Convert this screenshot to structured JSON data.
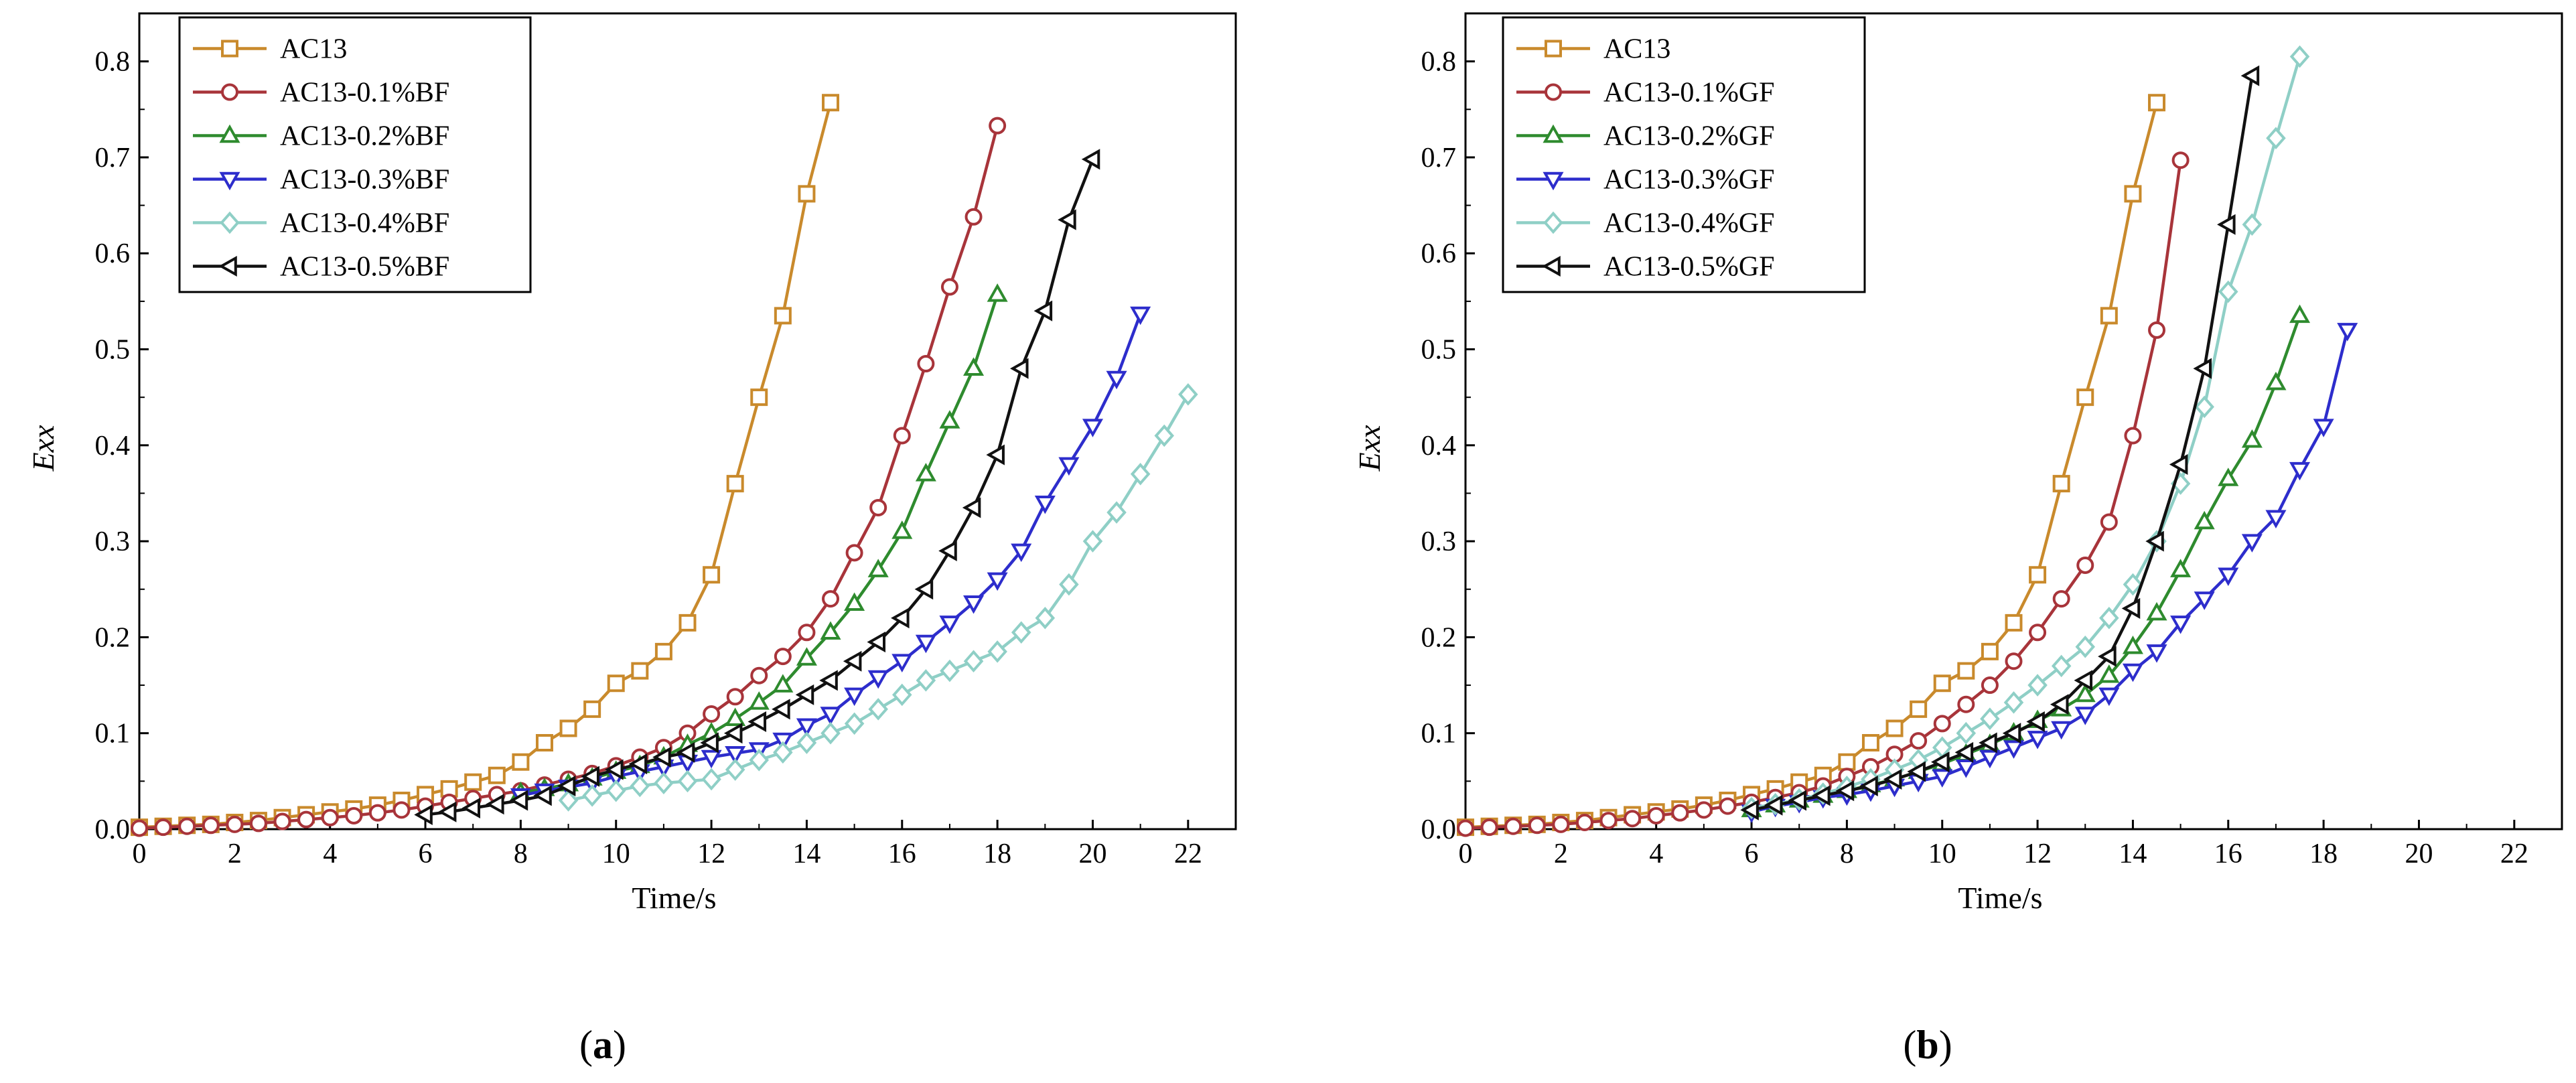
{
  "chart_data": [
    {
      "type": "line",
      "panel_label": "a",
      "xlabel": "Time/s",
      "ylabel": "Exx",
      "xlim": [
        0,
        23
      ],
      "ylim": [
        0,
        0.85
      ],
      "xticks": [
        "0",
        "2",
        "4",
        "6",
        "8",
        "10",
        "12",
        "14",
        "16",
        "18",
        "20",
        "22"
      ],
      "yticks": [
        "0.0",
        "0.1",
        "0.2",
        "0.3",
        "0.4",
        "0.5",
        "0.6",
        "0.7",
        "0.8"
      ],
      "legend_position": "top-left",
      "series": [
        {
          "name": "AC13",
          "color": "#c98a2c",
          "marker": "square",
          "x": [
            0,
            0.5,
            1,
            1.5,
            2,
            2.5,
            3,
            3.5,
            4,
            4.5,
            5,
            5.5,
            6,
            6.5,
            7,
            7.5,
            8,
            8.5,
            9,
            9.5,
            10,
            10.5,
            11,
            11.5,
            12,
            12.5,
            13,
            13.5,
            14,
            14.5
          ],
          "y": [
            0.002,
            0.003,
            0.004,
            0.005,
            0.007,
            0.009,
            0.012,
            0.015,
            0.018,
            0.021,
            0.025,
            0.03,
            0.036,
            0.042,
            0.049,
            0.056,
            0.07,
            0.09,
            0.105,
            0.125,
            0.152,
            0.165,
            0.185,
            0.215,
            0.265,
            0.36,
            0.45,
            0.535,
            0.662,
            0.757
          ]
        },
        {
          "name": "AC13-0.1%BF",
          "color": "#a8343a",
          "marker": "circle",
          "x": [
            0,
            0.5,
            1,
            1.5,
            2,
            2.5,
            3,
            3.5,
            4,
            4.5,
            5,
            5.5,
            6,
            6.5,
            7,
            7.5,
            8,
            8.5,
            9,
            9.5,
            10,
            10.5,
            11,
            11.5,
            12,
            12.5,
            13,
            13.5,
            14,
            14.5,
            15,
            15.5,
            16,
            16.5,
            17,
            17.5,
            18
          ],
          "y": [
            0.001,
            0.002,
            0.003,
            0.004,
            0.005,
            0.006,
            0.008,
            0.01,
            0.012,
            0.014,
            0.017,
            0.02,
            0.024,
            0.028,
            0.032,
            0.036,
            0.04,
            0.046,
            0.052,
            0.058,
            0.066,
            0.075,
            0.085,
            0.1,
            0.12,
            0.138,
            0.16,
            0.18,
            0.205,
            0.24,
            0.288,
            0.335,
            0.41,
            0.485,
            0.565,
            0.638,
            0.733
          ]
        },
        {
          "name": "AC13-0.2%BF",
          "color": "#2e8b2e",
          "marker": "triangle-up",
          "x": [
            8,
            8.5,
            9,
            9.5,
            10,
            10.5,
            11,
            11.5,
            12,
            12.5,
            13,
            13.5,
            14,
            14.5,
            15,
            15.5,
            16,
            16.5,
            17,
            17.5,
            18
          ],
          "y": [
            0.038,
            0.042,
            0.047,
            0.053,
            0.06,
            0.066,
            0.075,
            0.088,
            0.1,
            0.115,
            0.132,
            0.15,
            0.178,
            0.205,
            0.235,
            0.27,
            0.31,
            0.37,
            0.425,
            0.48,
            0.557
          ]
        },
        {
          "name": "AC13-0.3%BF",
          "color": "#2d2dcc",
          "marker": "triangle-down",
          "x": [
            8,
            8.5,
            9,
            9.5,
            10,
            10.5,
            11,
            11.5,
            12,
            12.5,
            13,
            13.5,
            14,
            14.5,
            15,
            15.5,
            16,
            16.5,
            17,
            17.5,
            18,
            18.5,
            19,
            19.5,
            20,
            20.5,
            21
          ],
          "y": [
            0.035,
            0.04,
            0.044,
            0.048,
            0.055,
            0.06,
            0.065,
            0.07,
            0.075,
            0.079,
            0.083,
            0.093,
            0.108,
            0.12,
            0.14,
            0.158,
            0.175,
            0.195,
            0.215,
            0.236,
            0.26,
            0.29,
            0.34,
            0.38,
            0.42,
            0.47,
            0.537
          ]
        },
        {
          "name": "AC13-0.4%BF",
          "color": "#8fcfc6",
          "marker": "diamond",
          "x": [
            9,
            9.5,
            10,
            10.5,
            11,
            11.5,
            12,
            12.5,
            13,
            13.5,
            14,
            14.5,
            15,
            15.5,
            16,
            16.5,
            17,
            17.5,
            18,
            18.5,
            19,
            19.5,
            20,
            20.5,
            21,
            21.5,
            22
          ],
          "y": [
            0.03,
            0.035,
            0.04,
            0.045,
            0.048,
            0.05,
            0.052,
            0.062,
            0.072,
            0.08,
            0.09,
            0.1,
            0.11,
            0.125,
            0.14,
            0.155,
            0.165,
            0.175,
            0.185,
            0.205,
            0.22,
            0.255,
            0.3,
            0.33,
            0.37,
            0.41,
            0.453
          ]
        },
        {
          "name": "AC13-0.5%BF",
          "color": "#111111",
          "marker": "triangle-left",
          "x": [
            6,
            6.5,
            7,
            7.5,
            8,
            8.5,
            9,
            9.5,
            10,
            10.5,
            11,
            11.5,
            12,
            12.5,
            13,
            13.5,
            14,
            14.5,
            15,
            15.5,
            16,
            16.5,
            17,
            17.5,
            18,
            18.5,
            19,
            19.5,
            20
          ],
          "y": [
            0.015,
            0.018,
            0.022,
            0.026,
            0.03,
            0.035,
            0.045,
            0.055,
            0.062,
            0.068,
            0.075,
            0.08,
            0.09,
            0.1,
            0.112,
            0.125,
            0.14,
            0.155,
            0.175,
            0.195,
            0.22,
            0.25,
            0.29,
            0.335,
            0.39,
            0.48,
            0.54,
            0.635,
            0.698
          ]
        }
      ]
    },
    {
      "type": "line",
      "panel_label": "b",
      "xlabel": "Time/s",
      "ylabel": "Exx",
      "xlim": [
        0,
        23
      ],
      "ylim": [
        0,
        0.85
      ],
      "xticks": [
        "0",
        "2",
        "4",
        "6",
        "8",
        "10",
        "12",
        "14",
        "16",
        "18",
        "20",
        "22"
      ],
      "yticks": [
        "0.0",
        "0.1",
        "0.2",
        "0.3",
        "0.4",
        "0.5",
        "0.6",
        "0.7",
        "0.8"
      ],
      "legend_position": "top-left",
      "series": [
        {
          "name": "AC13",
          "color": "#c98a2c",
          "marker": "square",
          "x": [
            0,
            0.5,
            1,
            1.5,
            2,
            2.5,
            3,
            3.5,
            4,
            4.5,
            5,
            5.5,
            6,
            6.5,
            7,
            7.5,
            8,
            8.5,
            9,
            9.5,
            10,
            10.5,
            11,
            11.5,
            12,
            12.5,
            13,
            13.5,
            14,
            14.5
          ],
          "y": [
            0.002,
            0.003,
            0.004,
            0.005,
            0.007,
            0.009,
            0.012,
            0.015,
            0.018,
            0.021,
            0.025,
            0.03,
            0.036,
            0.042,
            0.049,
            0.056,
            0.07,
            0.09,
            0.105,
            0.125,
            0.152,
            0.165,
            0.185,
            0.215,
            0.265,
            0.36,
            0.45,
            0.535,
            0.662,
            0.757
          ]
        },
        {
          "name": "AC13-0.1%GF",
          "color": "#a8343a",
          "marker": "circle",
          "x": [
            0,
            0.5,
            1,
            1.5,
            2,
            2.5,
            3,
            3.5,
            4,
            4.5,
            5,
            5.5,
            6,
            6.5,
            7,
            7.5,
            8,
            8.5,
            9,
            9.5,
            10,
            10.5,
            11,
            11.5,
            12,
            12.5,
            13,
            13.5,
            14,
            14.5,
            15
          ],
          "y": [
            0.001,
            0.002,
            0.003,
            0.004,
            0.005,
            0.007,
            0.009,
            0.011,
            0.014,
            0.017,
            0.02,
            0.024,
            0.028,
            0.033,
            0.038,
            0.045,
            0.055,
            0.065,
            0.078,
            0.092,
            0.11,
            0.13,
            0.15,
            0.175,
            0.205,
            0.24,
            0.275,
            0.32,
            0.41,
            0.52,
            0.697
          ]
        },
        {
          "name": "AC13-0.2%GF",
          "color": "#2e8b2e",
          "marker": "triangle-up",
          "x": [
            6,
            6.5,
            7,
            7.5,
            8,
            8.5,
            9,
            9.5,
            10,
            10.5,
            11,
            11.5,
            12,
            12.5,
            13,
            13.5,
            14,
            14.5,
            15,
            15.5,
            16,
            16.5,
            17,
            17.5
          ],
          "y": [
            0.02,
            0.025,
            0.03,
            0.035,
            0.04,
            0.046,
            0.052,
            0.06,
            0.068,
            0.078,
            0.088,
            0.1,
            0.113,
            0.125,
            0.14,
            0.16,
            0.19,
            0.225,
            0.27,
            0.32,
            0.365,
            0.405,
            0.465,
            0.535
          ]
        },
        {
          "name": "AC13-0.3%GF",
          "color": "#2d2dcc",
          "marker": "triangle-down",
          "x": [
            6,
            6.5,
            7,
            7.5,
            8,
            8.5,
            9,
            9.5,
            10,
            10.5,
            11,
            11.5,
            12,
            12.5,
            13,
            13.5,
            14,
            14.5,
            15,
            15.5,
            16,
            16.5,
            17,
            17.5,
            18,
            18.5
          ],
          "y": [
            0.018,
            0.024,
            0.028,
            0.033,
            0.036,
            0.04,
            0.045,
            0.05,
            0.055,
            0.065,
            0.075,
            0.085,
            0.095,
            0.105,
            0.12,
            0.14,
            0.165,
            0.185,
            0.215,
            0.24,
            0.265,
            0.3,
            0.325,
            0.375,
            0.42,
            0.52
          ]
        },
        {
          "name": "AC13-0.4%GF",
          "color": "#8fcfc6",
          "marker": "diamond",
          "x": [
            6,
            6.5,
            7,
            7.5,
            8,
            8.5,
            9,
            9.5,
            10,
            10.5,
            11,
            11.5,
            12,
            12.5,
            13,
            13.5,
            14,
            14.5,
            15,
            15.5,
            16,
            16.5,
            17,
            17.5
          ],
          "y": [
            0.022,
            0.026,
            0.031,
            0.037,
            0.044,
            0.052,
            0.062,
            0.072,
            0.085,
            0.1,
            0.115,
            0.132,
            0.15,
            0.17,
            0.19,
            0.22,
            0.255,
            0.3,
            0.36,
            0.44,
            0.56,
            0.63,
            0.72,
            0.805
          ]
        },
        {
          "name": "AC13-0.5%GF",
          "color": "#111111",
          "marker": "triangle-left",
          "x": [
            6,
            6.5,
            7,
            7.5,
            8,
            8.5,
            9,
            9.5,
            10,
            10.5,
            11,
            11.5,
            12,
            12.5,
            13,
            13.5,
            14,
            14.5,
            15,
            15.5,
            16,
            16.5
          ],
          "y": [
            0.02,
            0.025,
            0.03,
            0.035,
            0.04,
            0.045,
            0.052,
            0.06,
            0.07,
            0.08,
            0.09,
            0.1,
            0.112,
            0.13,
            0.155,
            0.18,
            0.23,
            0.3,
            0.38,
            0.48,
            0.63,
            0.785
          ]
        }
      ]
    }
  ]
}
